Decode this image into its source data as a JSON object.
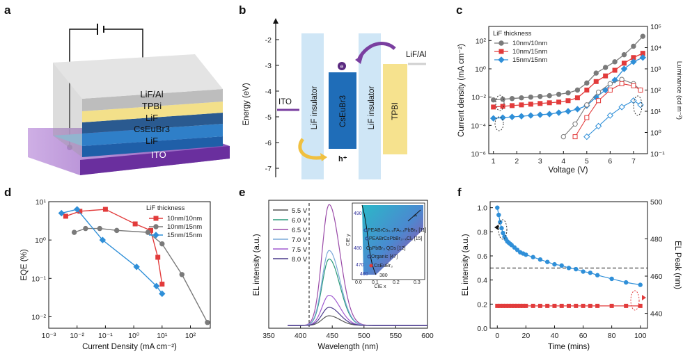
{
  "panels": {
    "a": {
      "label": "a",
      "layers": [
        "LiF/Al",
        "TPBi",
        "LiF",
        "CsEuBr3",
        "LiF",
        "ITO"
      ]
    },
    "b": {
      "label": "b",
      "ylabel": "Energy (eV)",
      "yticks": [
        "-2",
        "-3",
        "-4",
        "-5",
        "-6",
        "-7"
      ],
      "ito": "ITO",
      "lif1": "LiF insulator",
      "cseubr3": "CsEuBr3",
      "lif2": "LiF insulator",
      "tpbi": "TPBI",
      "lifal": "LiF/Al",
      "electron": "e",
      "hole": "h⁺"
    },
    "c": {
      "label": "c",
      "xlabel": "Voltage (V)",
      "ylabel_left": "Current density (mA cm⁻²)",
      "ylabel_right": "Luminance (cd m⁻²)",
      "legend_title": "LiF thickness",
      "xticks": [
        "1",
        "2",
        "3",
        "4",
        "5",
        "6",
        "7"
      ],
      "yticks_left": [
        "10²",
        "10⁰",
        "10⁻²",
        "10⁻⁴",
        "10⁻⁶"
      ],
      "yticks_right": [
        "10⁵",
        "10⁴",
        "10³",
        "10²",
        "10¹",
        "10⁰",
        "10⁻¹"
      ]
    },
    "d": {
      "label": "d",
      "xlabel": "Current Density (mA cm⁻²)",
      "ylabel": "EQE (%)",
      "legend_title": "LiF thickness",
      "xticks": [
        "10⁻³",
        "10⁻²",
        "10⁻¹",
        "10⁰",
        "10¹",
        "10²"
      ],
      "yticks": [
        "10¹",
        "10⁰",
        "10⁻¹",
        "10⁻²"
      ]
    },
    "e": {
      "label": "e",
      "xlabel": "Wavelength (nm)",
      "ylabel": "EL intensity (a.u.)",
      "xticks": [
        "350",
        "400",
        "450",
        "500",
        "550",
        "600"
      ],
      "inset": {
        "ylabel": "CIE y",
        "xlabel": "CIE x",
        "yticks": [
          "0.1",
          "0.2",
          "0.3"
        ],
        "xticks": [
          "0.0",
          "0.1",
          "0.2",
          "0.3"
        ],
        "wl": [
          "490",
          "480",
          "470",
          "460",
          "380"
        ],
        "infinity": "∞",
        "notes": [
          "PEABrCs₀.₉FA₀.₁PbBr₃ [11]",
          "PEABrCsPbBr₃₋ₓClₓ [15]",
          "CsPbBr₃ QDs [12]",
          "Organic [47]",
          "CsEuBr₃"
        ]
      }
    },
    "f": {
      "label": "f",
      "xlabel": "Time (mins)",
      "ylabel_left": "EL intensity (a.u.)",
      "ylabel_right": "EL Peak (nm)",
      "xticks": [
        "0",
        "20",
        "40",
        "60",
        "80",
        "100"
      ],
      "yticks_left": [
        "0.0",
        "0.2",
        "0.4",
        "0.6",
        "0.8",
        "1.0"
      ],
      "yticks_right": [
        "500",
        "480",
        "460",
        "440"
      ]
    }
  },
  "chart_data": [
    {
      "panel": "c",
      "type": "line",
      "x_label": "Voltage (V)",
      "xlim": [
        0.8,
        7.6
      ],
      "ylim_left_log": [
        -6,
        3
      ],
      "ylim_right_log": [
        -1,
        5
      ],
      "series_current": [
        {
          "name": "10nm/10nm",
          "color": "#7a7a7a",
          "marker": "circle",
          "x": [
            1,
            1.4,
            1.8,
            2.2,
            2.6,
            3,
            3.4,
            3.8,
            4.2,
            4.6,
            5,
            5.4,
            5.8,
            6.2,
            6.6,
            7,
            7.4
          ],
          "logy": [
            -2.2,
            -2.15,
            -2.1,
            -2.05,
            -2,
            -1.95,
            -1.9,
            -1.8,
            -1.7,
            -1.5,
            -1.0,
            -0.3,
            0.1,
            0.5,
            1.0,
            1.6,
            2.3
          ]
        },
        {
          "name": "10nm/15nm",
          "color": "#e23b3b",
          "marker": "square",
          "x": [
            1,
            1.4,
            1.8,
            2.2,
            2.6,
            3,
            3.4,
            3.8,
            4.2,
            4.6,
            5,
            5.4,
            5.8,
            6.2,
            6.6,
            7,
            7.4
          ],
          "logy": [
            -2.7,
            -2.65,
            -2.6,
            -2.55,
            -2.5,
            -2.45,
            -2.4,
            -2.35,
            -2.25,
            -2.05,
            -1.5,
            -0.9,
            -0.5,
            -0.1,
            0.4,
            0.8,
            1.1
          ]
        },
        {
          "name": "15nm/15nm",
          "color": "#2f8fd8",
          "marker": "diamond",
          "x": [
            1,
            1.4,
            1.8,
            2.2,
            2.6,
            3,
            3.4,
            3.8,
            4.2,
            4.6,
            5,
            5.4,
            5.8,
            6.2,
            6.6,
            7,
            7.4
          ],
          "logy": [
            -3.5,
            -3.45,
            -3.4,
            -3.35,
            -3.3,
            -3.25,
            -3.2,
            -3.1,
            -3.0,
            -2.85,
            -2.6,
            -2.0,
            -1.5,
            -0.8,
            0.0,
            0.5,
            0.8
          ]
        }
      ],
      "series_luminance": [
        {
          "name": "10nm/10nm",
          "color": "#7a7a7a",
          "x": [
            4,
            4.5,
            5,
            5.5,
            6,
            6.5,
            7,
            7.3
          ],
          "logy": [
            -0.2,
            0.4,
            1.3,
            1.9,
            2.3,
            2.5,
            2.3,
            2.0
          ]
        },
        {
          "name": "10nm/15nm",
          "color": "#e23b3b",
          "x": [
            4.5,
            5,
            5.5,
            6,
            6.5,
            7,
            7.3
          ],
          "logy": [
            -0.2,
            0.7,
            1.5,
            2.0,
            2.3,
            2.2,
            2.0
          ]
        },
        {
          "name": "15nm/15nm",
          "color": "#2f8fd8",
          "x": [
            5,
            5.5,
            6,
            6.5,
            7,
            7.3
          ],
          "logy": [
            -0.2,
            0.3,
            0.8,
            1.2,
            1.5,
            1.3
          ]
        }
      ]
    },
    {
      "panel": "d",
      "type": "line",
      "x_label": "Current Density (mA cm⁻²)",
      "y_label": "EQE (%)",
      "xlim_log": [
        -3,
        2.7
      ],
      "ylim_log": [
        -2.3,
        1
      ],
      "series": [
        {
          "name": "10nm/10nm",
          "color": "#e23b3b",
          "marker": "square",
          "logx": [
            -2.4,
            -1.9,
            -1.0,
            0.05,
            0.6,
            0.85,
            1.0
          ],
          "logy": [
            0.62,
            0.75,
            0.8,
            0.42,
            0.25,
            -0.45,
            -1.15
          ]
        },
        {
          "name": "10nm/15nm",
          "color": "#7a7a7a",
          "marker": "circle",
          "logx": [
            -2.1,
            -1.7,
            -1.2,
            -0.6,
            0.5,
            1.0,
            1.7,
            2.6
          ],
          "logy": [
            0.2,
            0.3,
            0.3,
            0.25,
            0.2,
            -0.1,
            -0.9,
            -2.15
          ]
        },
        {
          "name": "15nm/15nm",
          "color": "#2f8fd8",
          "marker": "diamond",
          "logx": [
            -2.55,
            -2.0,
            -1.1,
            0.1,
            0.8,
            1.0
          ],
          "logy": [
            0.7,
            0.8,
            0.0,
            -0.7,
            -1.2,
            -1.4
          ]
        }
      ]
    },
    {
      "panel": "e",
      "type": "line",
      "x_label": "Wavelength (nm)",
      "y_label": "EL intensity (a.u.)",
      "xlim": [
        350,
        600
      ],
      "peak_nm": 445,
      "series": [
        {
          "name": "5.5 V",
          "color": "#555555",
          "amplitude": 0.08
        },
        {
          "name": "6.0 V",
          "color": "#2a9a7a",
          "amplitude": 0.55
        },
        {
          "name": "6.5 V",
          "color": "#9a4aa8",
          "amplitude": 1.0
        },
        {
          "name": "7.0 V",
          "color": "#7aa8d8",
          "amplitude": 0.62
        },
        {
          "name": "7.5 V",
          "color": "#a05ad0",
          "amplitude": 0.25
        },
        {
          "name": "8.0 V",
          "color": "#4a3a8a",
          "amplitude": 0.15
        }
      ]
    },
    {
      "panel": "f",
      "type": "scatter",
      "x_label": "Time (mins)",
      "y_label": "EL intensity (a.u.)",
      "xlim": [
        -5,
        105
      ],
      "ylim": [
        0,
        1.05
      ],
      "reference_line_y": 0.5,
      "series": [
        {
          "name": "EL intensity",
          "color": "#2f8fd8",
          "x": [
            0,
            1,
            2,
            3,
            4,
            5,
            6,
            7,
            8,
            9,
            10,
            12,
            14,
            16,
            18,
            20,
            25,
            30,
            35,
            40,
            45,
            50,
            55,
            60,
            65,
            70,
            80,
            90,
            100
          ],
          "y": [
            1.0,
            0.94,
            0.88,
            0.83,
            0.79,
            0.76,
            0.74,
            0.72,
            0.71,
            0.7,
            0.69,
            0.67,
            0.65,
            0.63,
            0.62,
            0.61,
            0.59,
            0.57,
            0.55,
            0.53,
            0.52,
            0.5,
            0.49,
            0.47,
            0.46,
            0.44,
            0.41,
            0.38,
            0.36
          ]
        },
        {
          "name": "EL Peak",
          "color": "#e23b3b",
          "x": [
            0,
            2,
            4,
            6,
            8,
            10,
            12,
            14,
            16,
            18,
            20,
            25,
            30,
            35,
            40,
            45,
            50,
            55,
            60,
            65,
            70,
            80,
            90,
            100
          ],
          "y_nm": [
            444,
            444,
            444,
            444,
            444,
            444,
            444,
            444,
            444,
            444,
            444,
            444,
            444,
            444,
            444,
            444,
            444,
            444,
            444,
            444,
            444,
            444,
            444,
            444
          ]
        }
      ]
    }
  ]
}
